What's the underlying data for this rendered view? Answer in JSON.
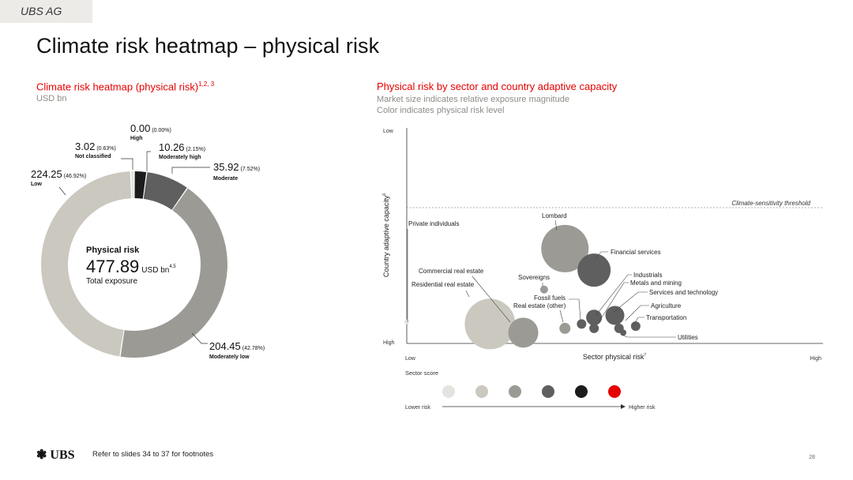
{
  "header": {
    "company": "UBS AG",
    "title": "Climate risk heatmap – physical risk"
  },
  "left_panel": {
    "title": "Climate risk heatmap (physical risk)",
    "title_sup": "1,2, 3",
    "subtitle": "USD bn",
    "center_label": "Physical risk",
    "center_value": "477.89",
    "center_unit": "USD bn",
    "center_unit_sup": "4,5",
    "center_caption": "Total exposure"
  },
  "right_panel": {
    "title": "Physical risk by sector and country adaptive capacity",
    "subtitle_1": "Market size indicates relative exposure magnitude",
    "subtitle_2": "Color indicates physical risk level"
  },
  "colors": {
    "accent_red": "#e60000",
    "score_1": "#e4e3df",
    "score_2": "#cac8bf",
    "score_3": "#9b9a94",
    "score_4": "#5e5f5e",
    "score_5": "#1c1c1c",
    "score_6": "#e60000"
  },
  "chart_data": [
    {
      "type": "pie",
      "variant": "donut",
      "slices": [
        {
          "label": "High",
          "value": 0.0,
          "value_text": "0.00",
          "pct_text": "(0.00%)",
          "color": "#e60000"
        },
        {
          "label": "Moderately high",
          "value": 10.26,
          "value_text": "10.26",
          "pct_text": "(2.15%)",
          "color": "#1c1c1c"
        },
        {
          "label": "Moderate",
          "value": 35.92,
          "value_text": "35.92",
          "pct_text": "(7.52%)",
          "color": "#5e5f5e"
        },
        {
          "label": "Moderately low",
          "value": 204.45,
          "value_text": "204.45",
          "pct_text": "(42.78%)",
          "color": "#9b9a94"
        },
        {
          "label": "Low",
          "value": 224.25,
          "value_text": "224.25",
          "pct_text": "(46.92%)",
          "color": "#cac8bf"
        },
        {
          "label": "Not classified",
          "value": 3.02,
          "value_text": "3.02",
          "pct_text": "(0.63%)",
          "color": "#e4e3df"
        }
      ]
    },
    {
      "type": "scatter",
      "variant": "bubble",
      "xlabel": "Sector physical risk",
      "xlabel_sup": "7",
      "ylabel": "Country adaptive capacity",
      "ylabel_sup": "6",
      "x_tick_low": "Low",
      "x_tick_high": "High",
      "y_tick_top": "Low",
      "y_tick_bottom": "High",
      "threshold_label": "Climate-sensitivity threshold",
      "threshold_y": 0.63,
      "points": [
        {
          "label": "Private individuals",
          "x": 0.0,
          "y": 0.1,
          "size": 3,
          "color": "#e4e3df"
        },
        {
          "label": "Lombard",
          "x": 0.38,
          "y": 0.44,
          "size": 30,
          "color": "#9b9a94"
        },
        {
          "label": "Financial services",
          "x": 0.45,
          "y": 0.34,
          "size": 21,
          "color": "#5e5f5e"
        },
        {
          "label": "Commercial real estate",
          "x": 0.2,
          "y": 0.09,
          "size": 32,
          "color": "#cac8bf"
        },
        {
          "label": "Residential real estate",
          "x": 0.28,
          "y": 0.05,
          "size": 19,
          "color": "#9b9a94"
        },
        {
          "label": "Sovereigns",
          "x": 0.33,
          "y": 0.25,
          "size": 5,
          "color": "#9b9a94"
        },
        {
          "label": "Fossil fuels",
          "x": 0.42,
          "y": 0.09,
          "size": 6,
          "color": "#5e5f5e"
        },
        {
          "label": "Real estate (other)",
          "x": 0.38,
          "y": 0.07,
          "size": 7,
          "color": "#9b9a94"
        },
        {
          "label": "Industrials",
          "x": 0.45,
          "y": 0.12,
          "size": 10,
          "color": "#5e5f5e"
        },
        {
          "label": "Metals and mining",
          "x": 0.45,
          "y": 0.07,
          "size": 6,
          "color": "#5e5f5e"
        },
        {
          "label": "Services and technology",
          "x": 0.5,
          "y": 0.13,
          "size": 12,
          "color": "#5e5f5e"
        },
        {
          "label": "Agriculture",
          "x": 0.51,
          "y": 0.07,
          "size": 6,
          "color": "#5e5f5e"
        },
        {
          "label": "Transportation",
          "x": 0.55,
          "y": 0.08,
          "size": 6,
          "color": "#5e5f5e"
        },
        {
          "label": "Utilities",
          "x": 0.52,
          "y": 0.05,
          "size": 4,
          "color": "#5e5f5e"
        }
      ]
    }
  ],
  "legend": {
    "title": "Sector score",
    "low_label": "Lower risk",
    "high_label": "Higher risk"
  },
  "footer": {
    "logo": "UBS",
    "note": "Refer to slides 34 to 37 for footnotes",
    "page_number": "28"
  }
}
